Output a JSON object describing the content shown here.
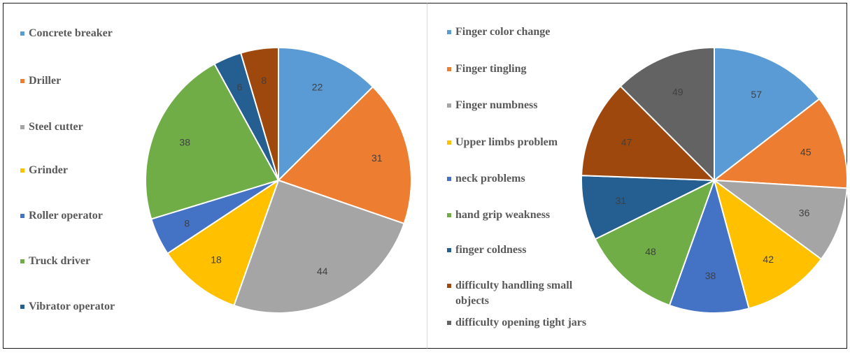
{
  "chart_data": [
    {
      "type": "pie",
      "categories": [
        "Concrete breaker",
        "Driller",
        "Steel cutter",
        "Grinder",
        "Roller operator",
        "Truck driver",
        "Vibrator operator",
        ""
      ],
      "values": [
        22,
        31,
        44,
        18,
        8,
        38,
        6,
        8
      ],
      "colors": [
        "#5b9bd5",
        "#ed7d31",
        "#a5a5a5",
        "#ffc000",
        "#4472c4",
        "#70ad47",
        "#255e91",
        "#9e480e"
      ],
      "legend_position": "left"
    },
    {
      "type": "pie",
      "categories": [
        "Finger color change",
        "Finger tingling",
        "Finger numbness",
        "Upper limbs problem",
        "neck problems",
        "hand grip weakness",
        "finger coldness",
        "difficulty handling small objects",
        "difficulty opening tight jars"
      ],
      "values": [
        57,
        45,
        36,
        42,
        38,
        48,
        31,
        47,
        49
      ],
      "colors": [
        "#5b9bd5",
        "#ed7d31",
        "#a5a5a5",
        "#ffc000",
        "#4472c4",
        "#70ad47",
        "#255e91",
        "#9e480e",
        "#636363"
      ],
      "legend_position": "left"
    }
  ]
}
